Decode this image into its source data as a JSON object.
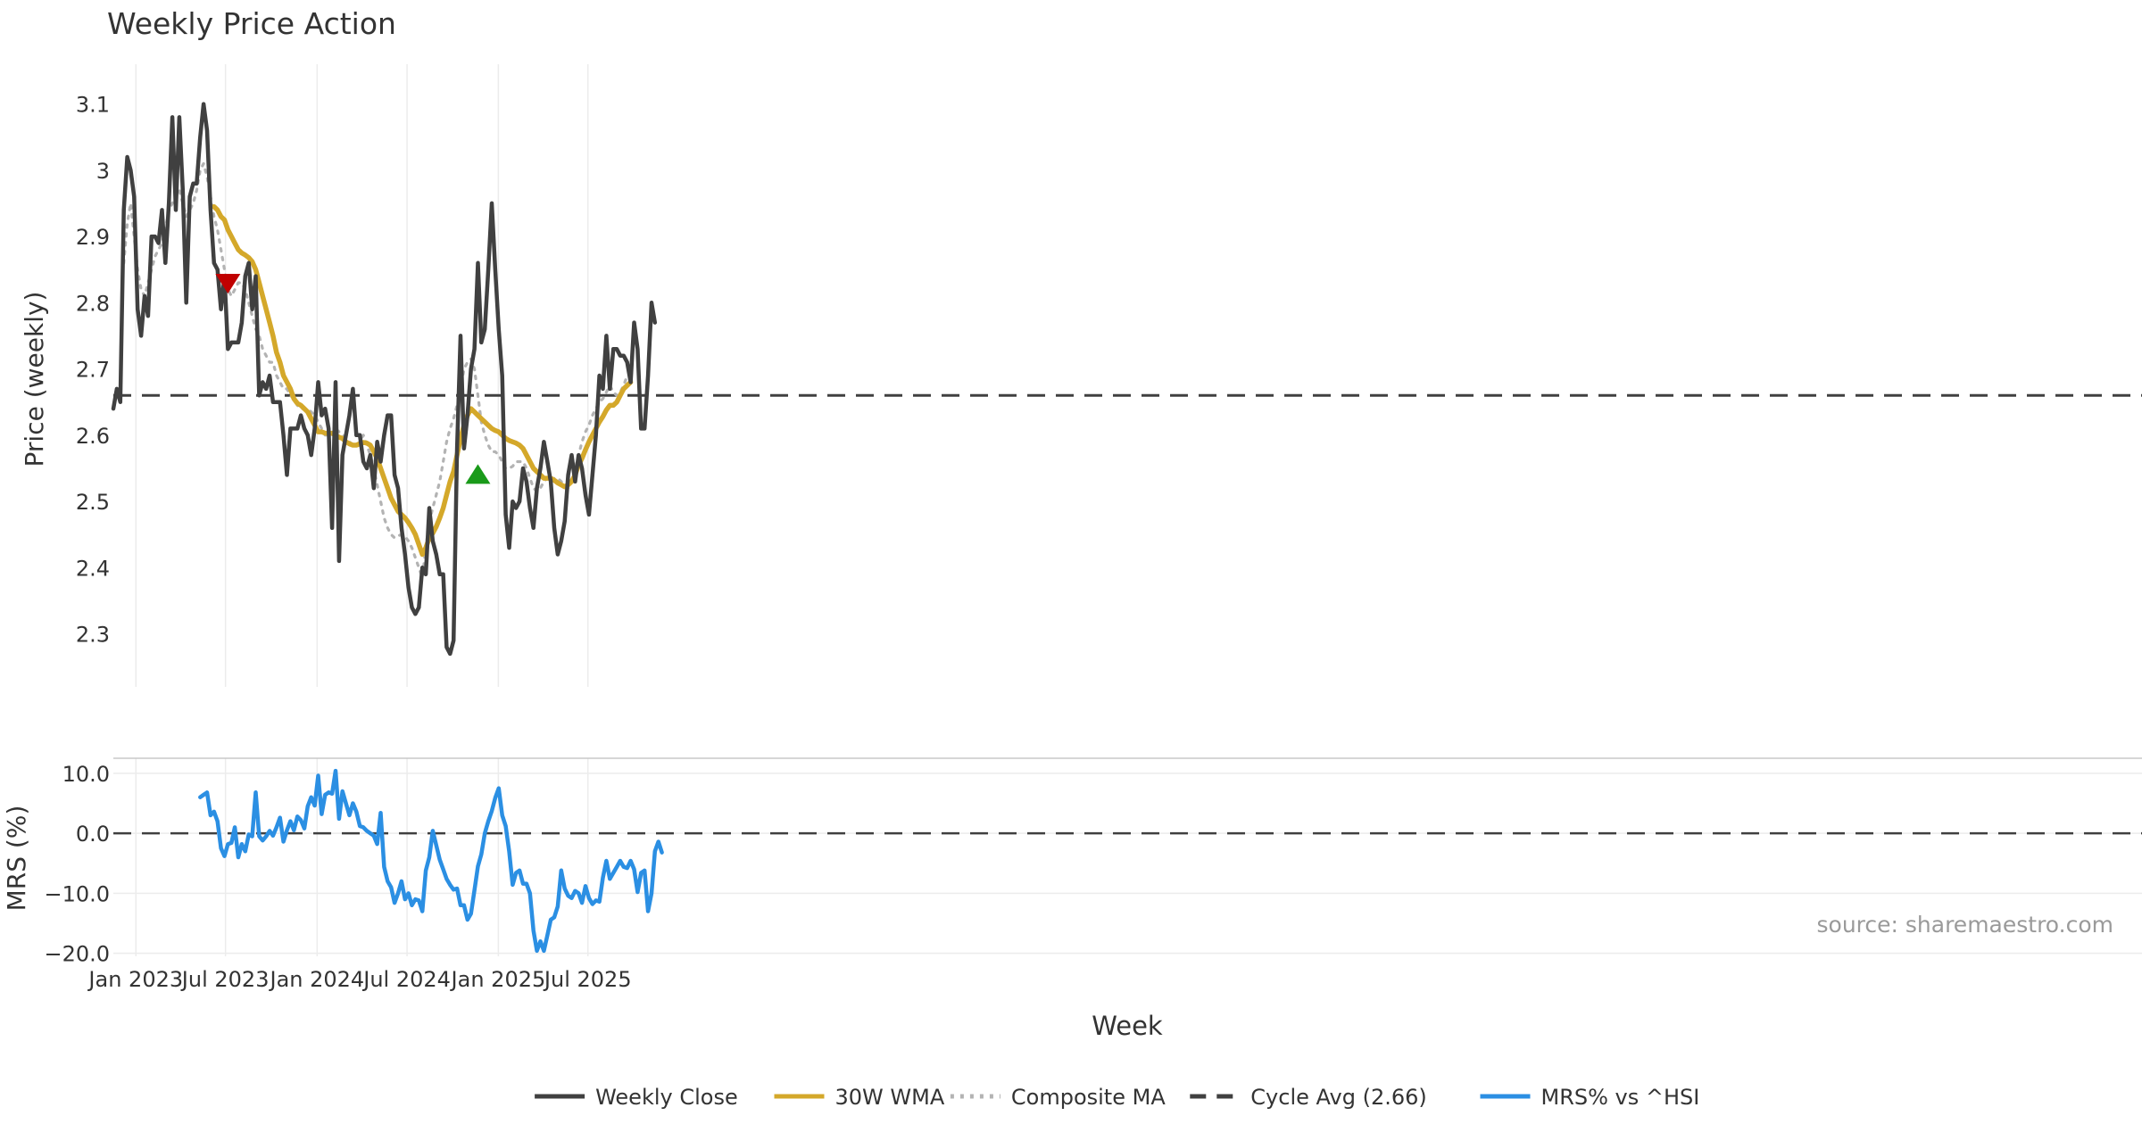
{
  "chart_data": [
    {
      "type": "line",
      "title": "Weekly Price Action",
      "ylabel": "Price (weekly)",
      "ylim": [
        2.22,
        3.16
      ],
      "yticks": [
        2.3,
        2.4,
        2.5,
        2.6,
        2.7,
        2.8,
        2.9,
        3.0,
        3.1
      ],
      "ytick_labels": [
        "2.3",
        "2.4",
        "2.5",
        "2.6",
        "2.7",
        "2.8",
        "2.9",
        "3",
        "3.1"
      ],
      "x_start": "2022-11-18",
      "x_step_weeks": 1,
      "cycle_avg": 2.66,
      "series": [
        {
          "name": "Weekly Close",
          "color": "#404040",
          "style": "solid",
          "start_index": 0,
          "values": [
            2.64,
            2.67,
            2.65,
            2.94,
            3.02,
            3.0,
            2.96,
            2.79,
            2.75,
            2.81,
            2.78,
            2.9,
            2.9,
            2.89,
            2.94,
            2.86,
            2.95,
            3.08,
            2.94,
            3.08,
            2.97,
            2.8,
            2.96,
            2.98,
            2.98,
            3.05,
            3.1,
            3.06,
            2.94,
            2.86,
            2.85,
            2.79,
            2.84,
            2.73,
            2.74,
            2.74,
            2.74,
            2.77,
            2.84,
            2.86,
            2.79,
            2.84,
            2.66,
            2.68,
            2.67,
            2.69,
            2.65,
            2.65,
            2.65,
            2.6,
            2.54,
            2.61,
            2.61,
            2.61,
            2.63,
            2.61,
            2.6,
            2.57,
            2.61,
            2.68,
            2.63,
            2.64,
            2.61,
            2.46,
            2.68,
            2.41,
            2.57,
            2.6,
            2.63,
            2.67,
            2.6,
            2.6,
            2.56,
            2.55,
            2.57,
            2.52,
            2.59,
            2.56,
            2.6,
            2.63,
            2.63,
            2.54,
            2.52,
            2.46,
            2.42,
            2.37,
            2.34,
            2.33,
            2.34,
            2.4,
            2.39,
            2.49,
            2.44,
            2.42,
            2.39,
            2.39,
            2.28,
            2.27,
            2.29,
            2.58,
            2.75,
            2.58,
            2.63,
            2.7,
            2.73,
            2.86,
            2.74,
            2.76,
            2.85,
            2.95,
            2.85,
            2.76,
            2.69,
            2.48,
            2.43,
            2.5,
            2.49,
            2.5,
            2.55,
            2.53,
            2.49,
            2.46,
            2.52,
            2.55,
            2.59,
            2.56,
            2.53,
            2.46,
            2.42,
            2.44,
            2.47,
            2.54,
            2.57,
            2.53,
            2.57,
            2.55,
            2.51,
            2.48,
            2.54,
            2.6,
            2.69,
            2.67,
            2.75,
            2.67,
            2.73,
            2.73,
            2.72,
            2.72,
            2.71,
            2.68,
            2.77,
            2.73,
            2.61,
            2.61,
            2.69,
            2.8,
            2.77
          ]
        },
        {
          "name": "30W WMA",
          "color": "#d4a82a",
          "style": "solid",
          "start_index": 29,
          "values": [
            2.945,
            2.94,
            2.93,
            2.925,
            2.91,
            2.9,
            2.89,
            2.88,
            2.875,
            2.872,
            2.868,
            2.862,
            2.85,
            2.83,
            2.81,
            2.79,
            2.77,
            2.75,
            2.725,
            2.71,
            2.69,
            2.68,
            2.67,
            2.655,
            2.648,
            2.645,
            2.64,
            2.635,
            2.625,
            2.615,
            2.605,
            2.605,
            2.603,
            2.603,
            2.603,
            2.6,
            2.597,
            2.595,
            2.59,
            2.587,
            2.585,
            2.585,
            2.587,
            2.589,
            2.588,
            2.585,
            2.575,
            2.565,
            2.55,
            2.535,
            2.52,
            2.505,
            2.495,
            2.485,
            2.48,
            2.475,
            2.468,
            2.46,
            2.45,
            2.435,
            2.42,
            2.43,
            2.445,
            2.452,
            2.462,
            2.475,
            2.49,
            2.51,
            2.53,
            2.545,
            2.57,
            2.595,
            2.615,
            2.63,
            2.64,
            2.635,
            2.63,
            2.625,
            2.62,
            2.615,
            2.61,
            2.607,
            2.605,
            2.6,
            2.595,
            2.592,
            2.59,
            2.588,
            2.585,
            2.58,
            2.57,
            2.56,
            2.55,
            2.545,
            2.54,
            2.535,
            2.535,
            2.535,
            2.532,
            2.528,
            2.525,
            2.522,
            2.525,
            2.53,
            2.54,
            2.555,
            2.565,
            2.578,
            2.59,
            2.6,
            2.61,
            2.62,
            2.628,
            2.638,
            2.645,
            2.645,
            2.65,
            2.66,
            2.67,
            2.675,
            2.68
          ]
        },
        {
          "name": "Composite MA",
          "color": "#b3b3b3",
          "style": "dotted",
          "start_index": 3,
          "values": [
            2.86,
            2.92,
            2.95,
            2.9,
            2.85,
            2.82,
            2.81,
            2.83,
            2.85,
            2.87,
            2.88,
            2.89,
            2.91,
            2.94,
            2.95,
            2.96,
            2.97,
            2.95,
            2.93,
            2.94,
            2.95,
            2.97,
            3.0,
            3.01,
            2.99,
            2.96,
            2.93,
            2.91,
            2.88,
            2.85,
            2.82,
            2.81,
            2.82,
            2.83,
            2.83,
            2.82,
            2.8,
            2.78,
            2.76,
            2.75,
            2.73,
            2.72,
            2.71,
            2.71,
            2.69,
            2.68,
            2.67,
            2.67,
            2.66,
            2.655,
            2.645,
            2.64,
            2.64,
            2.64,
            2.635,
            2.63,
            2.62,
            2.61,
            2.6,
            2.6,
            2.6,
            2.61,
            2.605,
            2.6,
            2.595,
            2.59,
            2.585,
            2.585,
            2.59,
            2.6,
            2.585,
            2.57,
            2.55,
            2.525,
            2.5,
            2.475,
            2.46,
            2.45,
            2.445,
            2.448,
            2.45,
            2.447,
            2.44,
            2.43,
            2.415,
            2.4,
            2.385,
            2.43,
            2.47,
            2.49,
            2.51,
            2.53,
            2.56,
            2.59,
            2.61,
            2.625,
            2.645,
            2.67,
            2.7,
            2.71,
            2.715,
            2.7,
            2.66,
            2.62,
            2.6,
            2.585,
            2.575,
            2.575,
            2.57,
            2.56,
            2.55,
            2.55,
            2.553,
            2.56,
            2.56,
            2.56,
            2.55,
            2.535,
            2.52,
            2.515,
            2.52,
            2.53,
            2.535,
            2.53,
            2.535,
            2.535,
            2.53,
            2.525,
            2.52,
            2.53,
            2.55,
            2.57,
            2.59,
            2.605,
            2.615,
            2.63,
            2.64,
            2.65,
            2.655,
            2.665,
            2.675,
            2.665,
            2.66,
            2.665,
            2.675,
            2.69
          ]
        },
        {
          "name": "Cycle Avg (2.66)",
          "color": "#404040",
          "style": "dashed",
          "value": 2.66
        }
      ],
      "markers": [
        {
          "type": "sell",
          "shape": "down-triangle",
          "color": "#c00000",
          "index": 33,
          "value": 2.83
        },
        {
          "type": "buy",
          "shape": "up-triangle",
          "color": "#1a9a1a",
          "index": 105,
          "value": 2.54
        }
      ]
    },
    {
      "type": "line",
      "ylabel": "MRS (%)",
      "ylim": [
        -20.5,
        12.5
      ],
      "yticks": [
        10,
        0,
        -10,
        -20
      ],
      "ytick_labels": [
        "10.0",
        "0.0",
        "−10.0",
        "−20.0"
      ],
      "zero_line": 0,
      "xlabel": "Week",
      "xtick_labels": [
        "Jan 2023",
        "Jul 2023",
        "Jan 2024",
        "Jul 2024",
        "Jan 2025",
        "Jul 2025"
      ],
      "xtick_indices": [
        6.5,
        32.3,
        58.7,
        84.6,
        110.9,
        136.7
      ],
      "annotation": "source: sharemaestro.com",
      "series": [
        {
          "name": "MRS% vs ^HSI",
          "color": "#2b8fe3",
          "style": "solid",
          "start_index": 25,
          "values": [
            6,
            6.4,
            6.8,
            3,
            3.6,
            2,
            -2.5,
            -3.8,
            -1.8,
            -1.6,
            1,
            -4,
            -1.8,
            -3,
            -0.2,
            -0.5,
            6.8,
            -0.5,
            -1.2,
            -0.5,
            0.4,
            -0.4,
            1,
            2.6,
            -1.4,
            0.5,
            2,
            0.5,
            2.8,
            2.2,
            0.8,
            4.5,
            6,
            4.6,
            9.6,
            3.2,
            6.4,
            6.8,
            6.6,
            10.4,
            2.4,
            7,
            5,
            3,
            5,
            3.6,
            1.2,
            1,
            0.4,
            0,
            -0.4,
            -1.8,
            3.4,
            -5.6,
            -8,
            -9,
            -11.6,
            -10,
            -8,
            -11,
            -10,
            -12,
            -11,
            -11.2,
            -13,
            -6.2,
            -4,
            0.4,
            -2,
            -4.4,
            -6,
            -7.6,
            -8.6,
            -9.4,
            -9.2,
            -12,
            -12,
            -14.4,
            -13.4,
            -9.5,
            -5.5,
            -3.5,
            0,
            2,
            3.7,
            5.9,
            7.5,
            3,
            1.2,
            -3,
            -8.6,
            -6.6,
            -6.2,
            -8.4,
            -8.4,
            -10,
            -16.2,
            -19.6,
            -18,
            -19.6,
            -17,
            -14.4,
            -14,
            -12.2,
            -6.2,
            -9.2,
            -10.4,
            -10.8,
            -9.6,
            -10,
            -11.6,
            -8.8,
            -10.8,
            -11.8,
            -11.2,
            -11.4,
            -7.4,
            -4.6,
            -7.6,
            -6.6,
            -5.6,
            -4.6,
            -5.6,
            -5.8,
            -4.6,
            -6,
            -9.8,
            -6.6,
            -6.2,
            -13,
            -10,
            -3,
            -1.4,
            -3.2
          ]
        }
      ]
    }
  ],
  "legend": {
    "items": [
      {
        "label": "Weekly Close",
        "color": "#404040",
        "style": "solid"
      },
      {
        "label": "30W WMA",
        "color": "#d4a82a",
        "style": "solid"
      },
      {
        "label": "Composite MA",
        "color": "#b3b3b3",
        "style": "dotted"
      },
      {
        "label": "Cycle Avg (2.66)",
        "color": "#404040",
        "style": "dashed"
      },
      {
        "label": "MRS% vs ^HSI",
        "color": "#2b8fe3",
        "style": "solid"
      }
    ]
  }
}
